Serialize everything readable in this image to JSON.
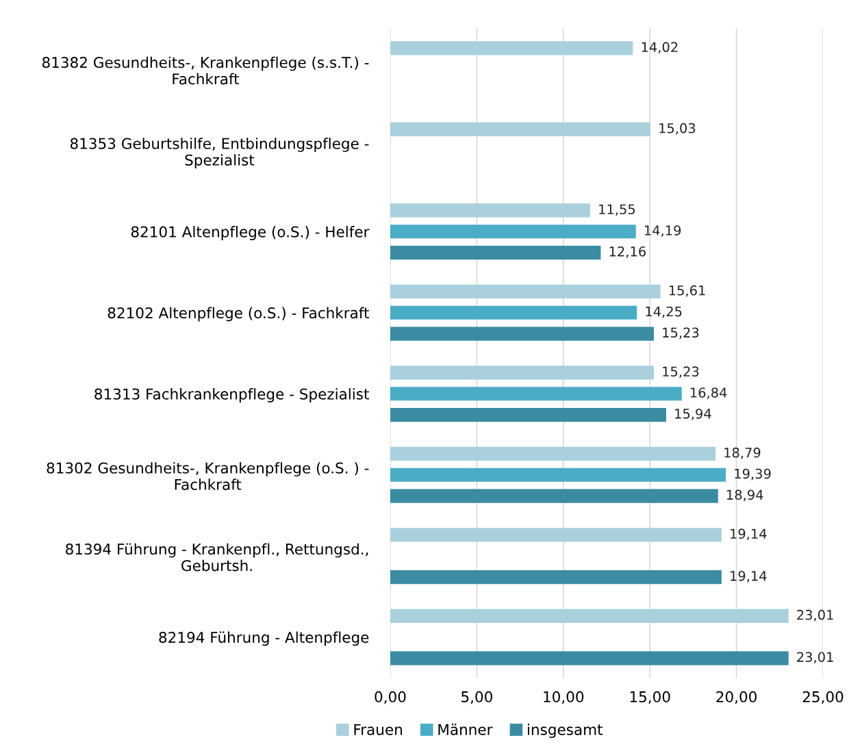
{
  "chart_data": {
    "type": "bar",
    "orientation": "horizontal",
    "categories": [
      "81382 Gesundheits-, Krankenpflege (s.s.T.) -\nFachkraft",
      "81353 Geburtshilfe, Entbindungspflege -\nSpezialist",
      "82101 Altenpflege (o.S.) - Helfer",
      "82102 Altenpflege (o.S.) - Fachkraft",
      "81313 Fachkrankenpflege - Spezialist",
      "81302 Gesundheits-, Krankenpflege (o.S. ) -\nFachkraft",
      "81394 Führung - Krankenpfl., Rettungsd.,\nGeburtsh.",
      "82194 Führung - Altenpflege"
    ],
    "series": [
      {
        "name": "Frauen",
        "color": "#a9d0dc",
        "values": [
          14.02,
          15.03,
          11.55,
          15.61,
          15.23,
          18.79,
          19.14,
          23.01
        ],
        "value_labels": [
          "14,02",
          "15,03",
          "11,55",
          "15,61",
          "15,23",
          "18,79",
          "19,14",
          "23,01"
        ]
      },
      {
        "name": "Männer",
        "color": "#4bacc6",
        "values": [
          null,
          null,
          14.19,
          14.25,
          16.84,
          19.39,
          null,
          null
        ],
        "value_labels": [
          null,
          null,
          "14,19",
          "14,25",
          "16,84",
          "19,39",
          null,
          null
        ]
      },
      {
        "name": "insgesamt",
        "color": "#3b8ba3",
        "values": [
          null,
          null,
          12.16,
          15.23,
          15.94,
          18.94,
          19.14,
          23.01
        ],
        "value_labels": [
          null,
          null,
          "12,16",
          "15,23",
          "15,94",
          "18,94",
          "19,14",
          "23,01"
        ]
      }
    ],
    "xlim": [
      0,
      25
    ],
    "xticks": [
      {
        "value": 0,
        "label": "0,00"
      },
      {
        "value": 5,
        "label": "5,00"
      },
      {
        "value": 10,
        "label": "10,00"
      },
      {
        "value": 15,
        "label": "15,00"
      },
      {
        "value": 20,
        "label": "20,00"
      },
      {
        "value": 25,
        "label": "25,00"
      }
    ],
    "grid": "x",
    "legend": "bottom"
  }
}
